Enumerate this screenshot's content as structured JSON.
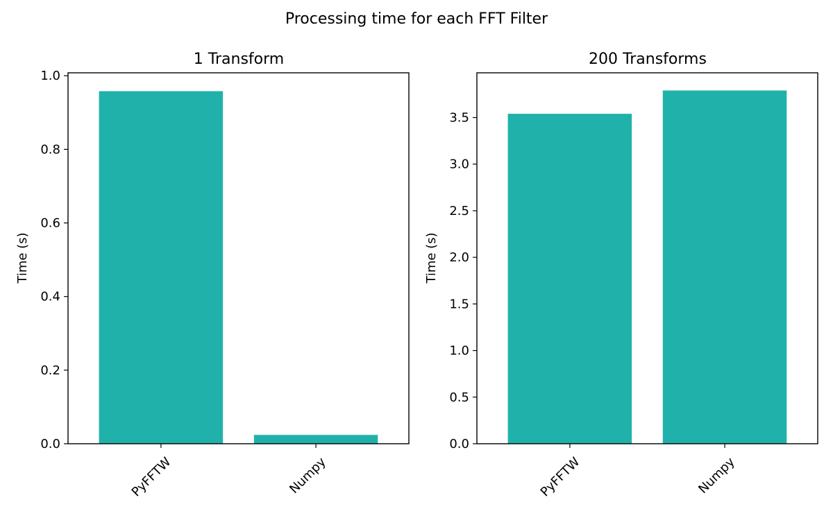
{
  "figure": {
    "title": "Processing time for each FFT Filter"
  },
  "chart_data": [
    {
      "type": "bar",
      "title": "1 Transform",
      "categories": [
        "PyFFTW",
        "Numpy"
      ],
      "values": [
        0.958,
        0.024
      ],
      "xlabel": "",
      "ylabel": "Time (s)",
      "ylim": [
        0,
        1.008
      ],
      "yticks": [
        0.0,
        0.2,
        0.4,
        0.6,
        0.8,
        1.0
      ],
      "ytick_labels": [
        "0.0",
        "0.2",
        "0.4",
        "0.6",
        "0.8",
        "1.0"
      ],
      "bar_color": "#20b2aa",
      "grid": false,
      "legend": "none"
    },
    {
      "type": "bar",
      "title": "200 Transforms",
      "categories": [
        "PyFFTW",
        "Numpy"
      ],
      "values": [
        3.54,
        3.79
      ],
      "xlabel": "",
      "ylabel": "Time (s)",
      "ylim": [
        0,
        3.98
      ],
      "yticks": [
        0.0,
        0.5,
        1.0,
        1.5,
        2.0,
        2.5,
        3.0,
        3.5
      ],
      "ytick_labels": [
        "0.0",
        "0.5",
        "1.0",
        "1.5",
        "2.0",
        "2.5",
        "3.0",
        "3.5"
      ],
      "bar_color": "#20b2aa",
      "grid": false,
      "legend": "none"
    }
  ]
}
